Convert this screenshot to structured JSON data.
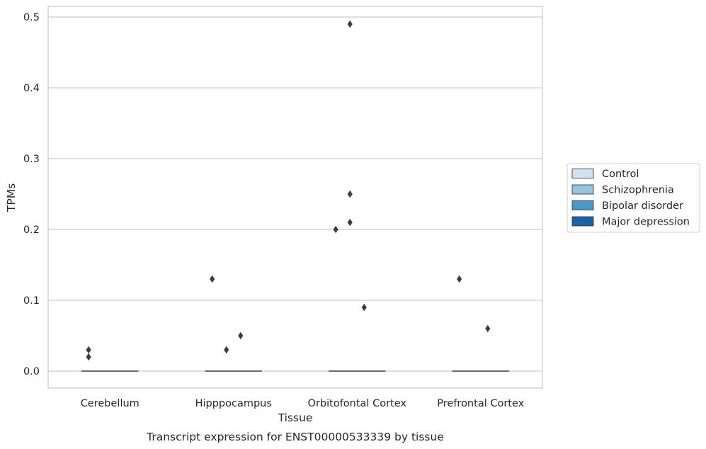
{
  "chart_data": {
    "type": "box",
    "title": "",
    "caption": "Transcript expression for ENST00000533339 by tissue",
    "xlabel": "Tissue",
    "ylabel": "TPMs",
    "ylim": [
      -0.024,
      0.515
    ],
    "yticks": [
      "0.0",
      "0.1",
      "0.2",
      "0.3",
      "0.4",
      "0.5"
    ],
    "categories": [
      "Cerebellum",
      "Hipppocampus",
      "Orbitofontal Cortex",
      "Prefrontal Cortex"
    ],
    "grid": true,
    "legend_position": "right",
    "series": [
      {
        "name": "Control",
        "color": "#d0e1f2",
        "median": [
          0,
          0,
          0,
          0
        ],
        "outliers": [
          [
            0.03,
            0.02
          ],
          [
            0.13
          ],
          [
            0.2
          ],
          [
            0.13
          ]
        ]
      },
      {
        "name": "Schizophrenia",
        "color": "#94c4df",
        "median": [
          0,
          0,
          0,
          0
        ],
        "outliers": [
          [],
          [
            0.03
          ],
          [
            0.49,
            0.25,
            0.21
          ],
          []
        ]
      },
      {
        "name": "Bipolar disorder",
        "color": "#4a98c9",
        "median": [
          0,
          0,
          0,
          0
        ],
        "outliers": [
          [],
          [
            0.05
          ],
          [
            0.09
          ],
          [
            0.06
          ]
        ]
      },
      {
        "name": "Major depression",
        "color": "#1764ab",
        "median": [
          0,
          0,
          0,
          0
        ],
        "outliers": [
          [],
          [],
          [],
          []
        ]
      }
    ]
  }
}
